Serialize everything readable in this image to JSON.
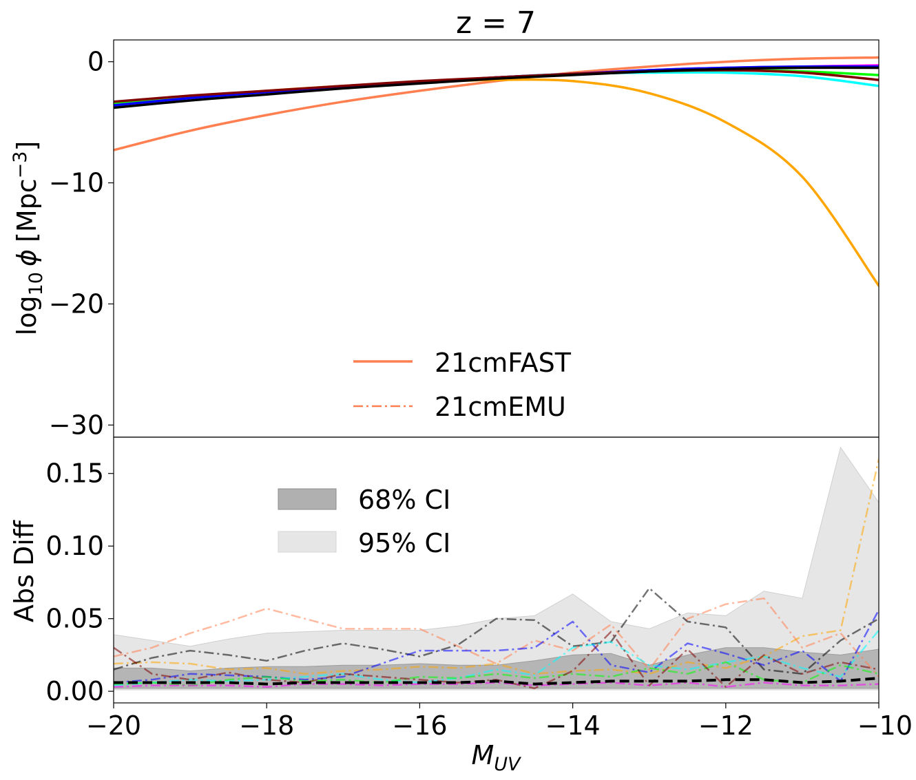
{
  "chart_data": {
    "type": "line",
    "title": "z = 7",
    "xlabel_main": "M",
    "xlabel_sub": "UV",
    "xlim": [
      -20,
      -10
    ],
    "x_ticks": [
      -20,
      -18,
      -16,
      -14,
      -12,
      -10
    ],
    "x_tick_labels": [
      "−20",
      "−18",
      "−16",
      "−14",
      "−12",
      "−10"
    ],
    "top_panel": {
      "ylabel_prefix": "log",
      "ylabel_sub": "10",
      "ylabel_phi": "ϕ",
      "ylabel_unit": "[Mpc",
      "ylabel_sup": "−3",
      "ylabel_close": "]",
      "ylim": [
        -31,
        1.8
      ],
      "y_ticks": [
        0,
        -10,
        -20,
        -30
      ],
      "y_tick_labels": [
        "0",
        "−10",
        "−20",
        "−30"
      ],
      "legend": {
        "placement": "lower center",
        "entries": [
          "21cmFAST",
          "21cmEMU"
        ]
      },
      "x": [
        -20,
        -19,
        -18,
        -17,
        -16,
        -15,
        -14,
        -13,
        -12,
        -11,
        -10
      ],
      "series": [
        {
          "color": "#ff7f50",
          "values": [
            -7.3,
            -5.7,
            -4.4,
            -3.3,
            -2.4,
            -1.6,
            -0.9,
            -0.4,
            0.0,
            0.25,
            0.35
          ]
        },
        {
          "color": "#ffa500",
          "values": [
            -3.4,
            -2.9,
            -2.4,
            -2.0,
            -1.7,
            -1.5,
            -1.6,
            -2.6,
            -5.0,
            -9.5,
            -18.5
          ]
        },
        {
          "color": "#00ffff",
          "values": [
            -3.5,
            -3.0,
            -2.5,
            -2.1,
            -1.7,
            -1.3,
            -1.0,
            -0.9,
            -0.9,
            -1.2,
            -2.0
          ]
        },
        {
          "color": "#00ff00",
          "values": [
            -3.5,
            -3.0,
            -2.5,
            -2.1,
            -1.7,
            -1.3,
            -1.0,
            -0.8,
            -0.7,
            -0.8,
            -1.1
          ]
        },
        {
          "color": "#ff00ff",
          "values": [
            -3.6,
            -3.0,
            -2.5,
            -2.1,
            -1.7,
            -1.3,
            -1.0,
            -0.7,
            -0.5,
            -0.4,
            -0.3
          ]
        },
        {
          "color": "#0000ff",
          "values": [
            -3.6,
            -3.0,
            -2.5,
            -2.1,
            -1.7,
            -1.3,
            -1.0,
            -0.7,
            -0.5,
            -0.4,
            -0.4
          ]
        },
        {
          "color": "#800000",
          "values": [
            -3.3,
            -2.8,
            -2.4,
            -2.0,
            -1.6,
            -1.3,
            -1.0,
            -0.8,
            -0.7,
            -0.9,
            -1.5
          ]
        },
        {
          "color": "#000000",
          "values": [
            -3.8,
            -3.2,
            -2.7,
            -2.2,
            -1.8,
            -1.4,
            -1.1,
            -0.8,
            -0.6,
            -0.5,
            -0.5
          ]
        }
      ]
    },
    "bottom_panel": {
      "ylabel": "Abs Diff",
      "ylim": [
        -0.008,
        0.175
      ],
      "y_ticks": [
        0.0,
        0.05,
        0.1,
        0.15
      ],
      "y_tick_labels": [
        "0.00",
        "0.05",
        "0.10",
        "0.15"
      ],
      "legend": {
        "placement": "upper left",
        "entries": [
          "68% CI",
          "95% CI"
        ]
      },
      "x": [
        -20,
        -19.5,
        -19,
        -18.5,
        -18,
        -17.5,
        -17,
        -16.5,
        -16,
        -15.5,
        -15,
        -14.5,
        -14,
        -13.5,
        -13,
        -12.5,
        -12,
        -11.5,
        -11,
        -10.5,
        -10
      ],
      "ci95_upper": [
        0.039,
        0.035,
        0.031,
        0.036,
        0.04,
        0.041,
        0.042,
        0.042,
        0.042,
        0.045,
        0.05,
        0.052,
        0.067,
        0.048,
        0.043,
        0.054,
        0.052,
        0.069,
        0.064,
        0.168,
        0.13
      ],
      "ci95_lower": [
        0.001,
        0.001,
        0.001,
        0.001,
        0.001,
        0.001,
        0.001,
        0.001,
        0.001,
        0.001,
        0.001,
        0.001,
        0.001,
        0.001,
        0.001,
        0.001,
        0.001,
        0.001,
        0.001,
        0.001,
        0.001
      ],
      "ci68_upper": [
        0.016,
        0.016,
        0.014,
        0.016,
        0.017,
        0.017,
        0.018,
        0.018,
        0.019,
        0.018,
        0.018,
        0.021,
        0.025,
        0.026,
        0.018,
        0.025,
        0.03,
        0.03,
        0.027,
        0.025,
        0.029
      ],
      "ci68_lower": [
        0.002,
        0.002,
        0.002,
        0.002,
        0.002,
        0.002,
        0.002,
        0.002,
        0.002,
        0.002,
        0.002,
        0.002,
        0.002,
        0.002,
        0.002,
        0.002,
        0.002,
        0.002,
        0.002,
        0.002,
        0.002
      ],
      "median": [
        0.006,
        0.006,
        0.006,
        0.006,
        0.005,
        0.006,
        0.006,
        0.006,
        0.006,
        0.006,
        0.007,
        0.005,
        0.006,
        0.007,
        0.007,
        0.007,
        0.008,
        0.008,
        0.006,
        0.007,
        0.009
      ],
      "series": [
        {
          "color": "#ff7f50",
          "values": [
            0.024,
            0.03,
            0.04,
            0.048,
            0.057,
            0.05,
            0.043,
            0.043,
            0.043,
            0.031,
            0.019,
            0.035,
            0.028,
            0.046,
            0.015,
            0.05,
            0.06,
            0.064,
            0.03,
            0.04,
            0.01
          ]
        },
        {
          "color": "#ffa500",
          "values": [
            0.019,
            0.02,
            0.019,
            0.015,
            0.016,
            0.012,
            0.014,
            0.015,
            0.017,
            0.016,
            0.019,
            0.012,
            0.014,
            0.015,
            0.012,
            0.02,
            0.016,
            0.024,
            0.038,
            0.042,
            0.16
          ]
        },
        {
          "color": "#000000",
          "values": [
            0.015,
            0.023,
            0.028,
            0.025,
            0.021,
            0.028,
            0.033,
            0.029,
            0.024,
            0.032,
            0.05,
            0.049,
            0.031,
            0.034,
            0.071,
            0.048,
            0.044,
            0.015,
            0.012,
            0.035,
            0.05
          ]
        },
        {
          "color": "#0000ff",
          "values": [
            0.006,
            0.008,
            0.012,
            0.011,
            0.01,
            0.008,
            0.01,
            0.019,
            0.028,
            0.028,
            0.028,
            0.03,
            0.048,
            0.018,
            0.013,
            0.033,
            0.026,
            0.018,
            0.028,
            0.007,
            0.056
          ]
        },
        {
          "color": "#00ffff",
          "values": [
            0.004,
            0.006,
            0.008,
            0.007,
            0.008,
            0.01,
            0.012,
            0.008,
            0.006,
            0.009,
            0.015,
            0.011,
            0.03,
            0.034,
            0.018,
            0.015,
            0.02,
            0.024,
            0.016,
            0.01,
            0.042
          ]
        },
        {
          "color": "#00ff00",
          "values": [
            0.005,
            0.006,
            0.004,
            0.008,
            0.01,
            0.007,
            0.008,
            0.006,
            0.01,
            0.009,
            0.012,
            0.009,
            0.012,
            0.01,
            0.016,
            0.012,
            0.02,
            0.008,
            0.006,
            0.018,
            0.012
          ]
        },
        {
          "color": "#800000",
          "values": [
            0.03,
            0.012,
            0.008,
            0.013,
            0.008,
            0.006,
            0.012,
            0.01,
            0.008,
            0.006,
            0.008,
            0.002,
            0.014,
            0.041,
            0.004,
            0.029,
            0.003,
            0.025,
            0.012,
            0.02,
            0.015
          ]
        },
        {
          "color": "#ff00ff",
          "values": [
            0.003,
            0.004,
            0.004,
            0.004,
            0.003,
            0.005,
            0.005,
            0.004,
            0.005,
            0.005,
            0.006,
            0.004,
            0.005,
            0.006,
            0.004,
            0.006,
            0.003,
            0.006,
            0.004,
            0.004,
            0.005
          ]
        }
      ]
    }
  }
}
